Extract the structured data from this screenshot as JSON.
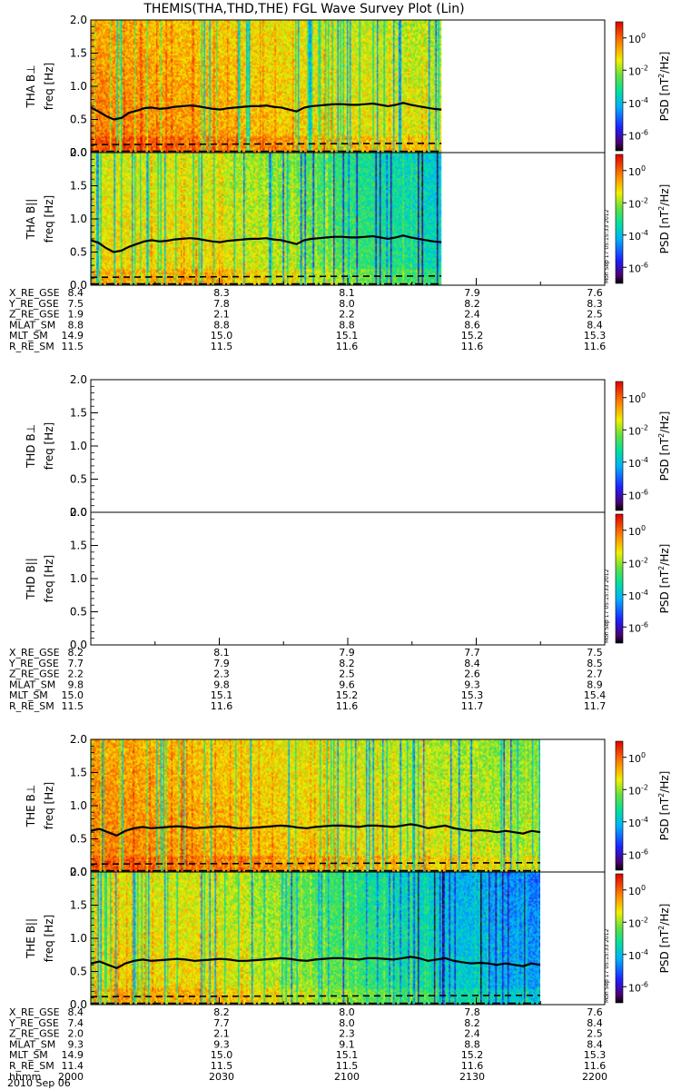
{
  "title": "THEMIS(THA,THD,THE) FGL Wave Survey Plot (Lin)",
  "footer_date": "2010 Sep 06",
  "chart_data": {
    "type": "heatmap",
    "y_range": [
      0,
      2.0
    ],
    "y_ticks": [
      0.0,
      0.5,
      1.0,
      1.5,
      2.0
    ],
    "y_tick_labels": [
      "0.0",
      "0.5",
      "1.0",
      "1.5",
      "2.0"
    ],
    "x_range_hhmm": [
      "2000",
      "2200"
    ],
    "colorbar": {
      "label_main": "PSD [nT",
      "label_sup": "2",
      "label_end": "/Hz]",
      "scale": "log",
      "range_exp": [
        -7,
        1
      ],
      "tick_exps": [
        0,
        -2,
        -4,
        -6
      ],
      "tick_base": "10"
    },
    "stamp": "Mon Sep 17 05:15:33 2012",
    "probes": [
      {
        "id": "THA",
        "has_data": true,
        "data_end_fraction": 0.78,
        "panels": [
          {
            "ylabel_probe": "THA B",
            "ylabel_comp": "⊥",
            "ylabel_unit": "freq [Hz]",
            "component": "perp",
            "stamp": "",
            "solid_level": [
              0.68,
              0.62,
              0.55,
              0.5,
              0.52,
              0.6,
              0.63,
              0.67,
              0.68,
              0.66,
              0.67,
              0.69,
              0.7,
              0.71,
              0.7,
              0.68,
              0.66,
              0.65,
              0.67,
              0.68,
              0.69,
              0.7,
              0.7,
              0.71,
              0.69,
              0.68,
              0.65,
              0.62,
              0.68,
              0.7,
              0.71,
              0.72,
              0.73,
              0.73,
              0.72,
              0.72,
              0.73,
              0.74,
              0.72,
              0.7,
              0.72,
              0.75,
              0.72,
              0.7,
              0.68,
              0.66,
              0.65
            ]
          },
          {
            "ylabel_probe": "THA B",
            "ylabel_comp": "||",
            "ylabel_unit": "freq [Hz]",
            "component": "par",
            "stamp": "Mon Sep 17 05:15:33 2012",
            "solid_level": [
              0.68,
              0.64,
              0.56,
              0.5,
              0.52,
              0.58,
              0.62,
              0.66,
              0.68,
              0.66,
              0.67,
              0.69,
              0.7,
              0.71,
              0.7,
              0.68,
              0.66,
              0.65,
              0.67,
              0.68,
              0.69,
              0.7,
              0.7,
              0.71,
              0.69,
              0.68,
              0.65,
              0.62,
              0.68,
              0.7,
              0.71,
              0.72,
              0.73,
              0.73,
              0.72,
              0.72,
              0.73,
              0.74,
              0.72,
              0.7,
              0.72,
              0.75,
              0.72,
              0.7,
              0.68,
              0.66,
              0.65
            ]
          }
        ],
        "ephemeris": [
          {
            "label": "X_RE_GSE",
            "values": [
              "8.4",
              "8.3",
              "8.1",
              "7.9",
              "7.6"
            ]
          },
          {
            "label": "Y_RE_GSE",
            "values": [
              "7.5",
              "7.8",
              "8.0",
              "8.2",
              "8.3"
            ]
          },
          {
            "label": "Z_RE_GSE",
            "values": [
              "1.9",
              "2.1",
              "2.2",
              "2.4",
              "2.5"
            ]
          },
          {
            "label": "MLAT_SM",
            "values": [
              "8.8",
              "8.8",
              "8.8",
              "8.6",
              "8.4"
            ]
          },
          {
            "label": "MLT_SM",
            "values": [
              "14.9",
              "15.0",
              "15.1",
              "15.2",
              "15.3"
            ]
          },
          {
            "label": "R_RE_SM",
            "values": [
              "11.5",
              "11.5",
              "11.6",
              "11.6",
              "11.6"
            ]
          }
        ]
      },
      {
        "id": "THD",
        "has_data": false,
        "data_end_fraction": 0,
        "panels": [
          {
            "ylabel_probe": "THD B",
            "ylabel_comp": "⊥",
            "ylabel_unit": "freq [Hz]",
            "component": "perp",
            "stamp": "",
            "solid_level": []
          },
          {
            "ylabel_probe": "THD B",
            "ylabel_comp": "||",
            "ylabel_unit": "freq [Hz]",
            "component": "par",
            "stamp": "Mon Sep 17 05:15:33 2012",
            "solid_level": []
          }
        ],
        "ephemeris": [
          {
            "label": "X_RE_GSE",
            "values": [
              "8.2",
              "8.1",
              "7.9",
              "7.7",
              "7.5"
            ]
          },
          {
            "label": "Y_RE_GSE",
            "values": [
              "7.7",
              "7.9",
              "8.2",
              "8.4",
              "8.5"
            ]
          },
          {
            "label": "Z_RE_GSE",
            "values": [
              "2.2",
              "2.3",
              "2.5",
              "2.6",
              "2.7"
            ]
          },
          {
            "label": "MLAT_SM",
            "values": [
              "9.8",
              "9.8",
              "9.6",
              "9.3",
              "8.9"
            ]
          },
          {
            "label": "MLT_SM",
            "values": [
              "15.0",
              "15.1",
              "15.2",
              "15.3",
              "15.4"
            ]
          },
          {
            "label": "R_RE_SM",
            "values": [
              "11.5",
              "11.6",
              "11.6",
              "11.7",
              "11.7"
            ]
          }
        ]
      },
      {
        "id": "THE",
        "has_data": true,
        "data_end_fraction": 1.0,
        "panels": [
          {
            "ylabel_probe": "THE B",
            "ylabel_comp": "⊥",
            "ylabel_unit": "freq [Hz]",
            "component": "perp",
            "stamp": "",
            "solid_level": [
              0.62,
              0.65,
              0.6,
              0.55,
              0.62,
              0.66,
              0.68,
              0.66,
              0.67,
              0.68,
              0.69,
              0.68,
              0.66,
              0.67,
              0.68,
              0.69,
              0.68,
              0.66,
              0.66,
              0.67,
              0.68,
              0.69,
              0.7,
              0.69,
              0.67,
              0.66,
              0.68,
              0.69,
              0.7,
              0.7,
              0.69,
              0.68,
              0.7,
              0.7,
              0.69,
              0.68,
              0.7,
              0.72,
              0.7,
              0.66,
              0.68,
              0.7,
              0.66,
              0.64,
              0.62,
              0.63,
              0.62,
              0.6,
              0.62,
              0.6,
              0.58,
              0.62,
              0.6
            ]
          },
          {
            "ylabel_probe": "THE B",
            "ylabel_comp": "||",
            "ylabel_unit": "freq [Hz]",
            "component": "par",
            "stamp": "Mon Sep 17 05:15:33 2012",
            "solid_level": [
              0.62,
              0.65,
              0.6,
              0.55,
              0.62,
              0.66,
              0.68,
              0.66,
              0.67,
              0.68,
              0.69,
              0.68,
              0.66,
              0.67,
              0.68,
              0.69,
              0.68,
              0.66,
              0.66,
              0.67,
              0.68,
              0.69,
              0.7,
              0.69,
              0.67,
              0.66,
              0.68,
              0.69,
              0.7,
              0.7,
              0.69,
              0.68,
              0.7,
              0.7,
              0.69,
              0.68,
              0.7,
              0.72,
              0.7,
              0.66,
              0.68,
              0.7,
              0.66,
              0.64,
              0.62,
              0.63,
              0.62,
              0.6,
              0.62,
              0.6,
              0.58,
              0.62,
              0.6
            ]
          }
        ],
        "ephemeris": [
          {
            "label": "X_RE_GSE",
            "values": [
              "8.4",
              "8.2",
              "8.0",
              "7.8",
              "7.6"
            ]
          },
          {
            "label": "Y_RE_GSE",
            "values": [
              "7.4",
              "7.7",
              "8.0",
              "8.2",
              "8.4"
            ]
          },
          {
            "label": "Z_RE_GSE",
            "values": [
              "2.0",
              "2.1",
              "2.3",
              "2.4",
              "2.5"
            ]
          },
          {
            "label": "MLAT_SM",
            "values": [
              "9.3",
              "9.3",
              "9.1",
              "8.8",
              "8.4"
            ]
          },
          {
            "label": "MLT_SM",
            "values": [
              "14.9",
              "15.0",
              "15.1",
              "15.2",
              "15.3"
            ]
          },
          {
            "label": "R_RE_SM",
            "values": [
              "11.4",
              "11.5",
              "11.5",
              "11.6",
              "11.6"
            ]
          },
          {
            "label": "hhmm",
            "values": [
              "2000",
              "2030",
              "2100",
              "2130",
              "2200"
            ]
          }
        ]
      }
    ]
  }
}
